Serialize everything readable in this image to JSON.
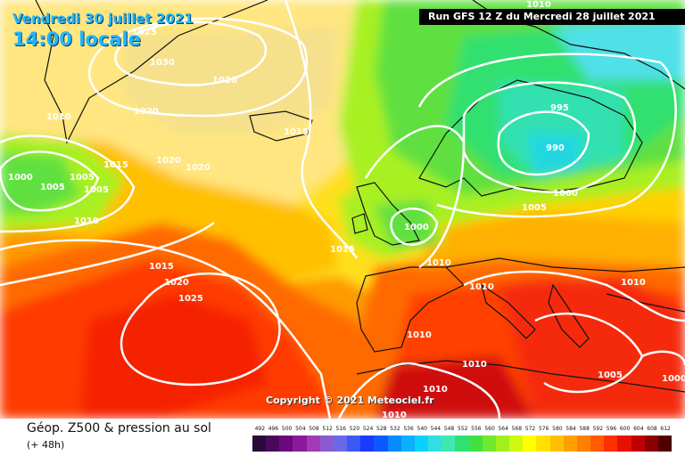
{
  "header": {
    "date": "Vendredi 30 juillet 2021",
    "time": "14:00 locale",
    "run": "Run GFS 12 Z du Mercredi 28 juillet 2021"
  },
  "copyright": "Copyright © 2021 Meteociel.fr",
  "footer": {
    "title": "Géop. Z500 & pression au sol",
    "subtitle": "(+ 48h)"
  },
  "isobar_labels": [
    "1025",
    "1030",
    "1020",
    "1010",
    "1020",
    "1015",
    "1020",
    "1020",
    "1000",
    "1005",
    "1005",
    "1005",
    "1015",
    "1010",
    "1015",
    "995",
    "990",
    "1000",
    "1005",
    "1000",
    "1015",
    "1010",
    "1010",
    "1015",
    "1020",
    "1025",
    "1010",
    "1010",
    "1010",
    "1010",
    "1010",
    "1005",
    "1000",
    "1010"
  ],
  "scale": {
    "ticks": [
      "492",
      "496",
      "500",
      "504",
      "508",
      "512",
      "516",
      "520",
      "524",
      "528",
      "532",
      "536",
      "540",
      "544",
      "548",
      "552",
      "556",
      "560",
      "564",
      "568",
      "572",
      "576",
      "580",
      "584",
      "588",
      "592",
      "596",
      "600",
      "604",
      "608",
      "612"
    ],
    "colors": [
      "#2a0a3a",
      "#4a0a5a",
      "#6a0a7a",
      "#8a1a9a",
      "#a03ab5",
      "#8a5ad0",
      "#6a6ae8",
      "#3a5af5",
      "#1a3aff",
      "#0a5aff",
      "#0a8aff",
      "#0ab0ff",
      "#0ad0ff",
      "#30e0e0",
      "#40e8b0",
      "#30e070",
      "#40e040",
      "#70e830",
      "#a0f020",
      "#d0f810",
      "#ffff00",
      "#ffe000",
      "#ffc000",
      "#ffa000",
      "#ff8000",
      "#ff5a00",
      "#ff3000",
      "#e81000",
      "#c00000",
      "#8a0000",
      "#500000"
    ]
  },
  "colors": {
    "date_text": "#22b7ff",
    "isobar": "#ffffff",
    "land_outline": "#111111"
  }
}
